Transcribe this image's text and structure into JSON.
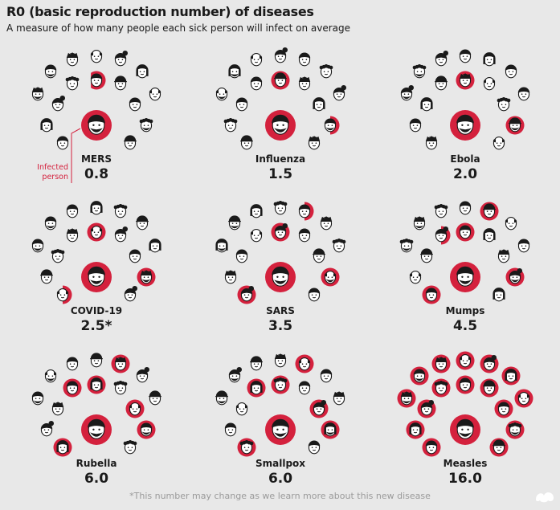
{
  "title": "R0 (basic reproduction number) of diseases",
  "subtitle": "A measure of how many people each sick person will infect on average",
  "footnote": "*This number may change as we learn more about this new disease",
  "callout": {
    "line1": "Infected",
    "line2": "person"
  },
  "colors": {
    "background": "#e8e8e8",
    "infected": "#d4213d",
    "face_skin": "#ffffff",
    "ink": "#1a1a1a",
    "footnote": "#9a9a9a"
  },
  "chart_data": {
    "type": "pictogram",
    "title": "R0 (basic reproduction number) of diseases",
    "subtitle": "A measure of how many people each sick person will infect on average",
    "unit": "people infected per sick person",
    "categories": [
      "MERS",
      "Influenza",
      "Ebola",
      "COVID-19",
      "SARS",
      "Mumps",
      "Rubella",
      "Smallpox",
      "Measles"
    ],
    "values": [
      0.8,
      1.5,
      2.0,
      2.5,
      3.5,
      4.5,
      6.0,
      6.0,
      16.0
    ],
    "value_labels": [
      "0.8",
      "1.5",
      "2.0",
      "2.5*",
      "3.5",
      "4.5",
      "6.0",
      "6.0",
      "16.0"
    ],
    "annotations": [
      "*This number may change as we learn more about this new disease"
    ]
  }
}
